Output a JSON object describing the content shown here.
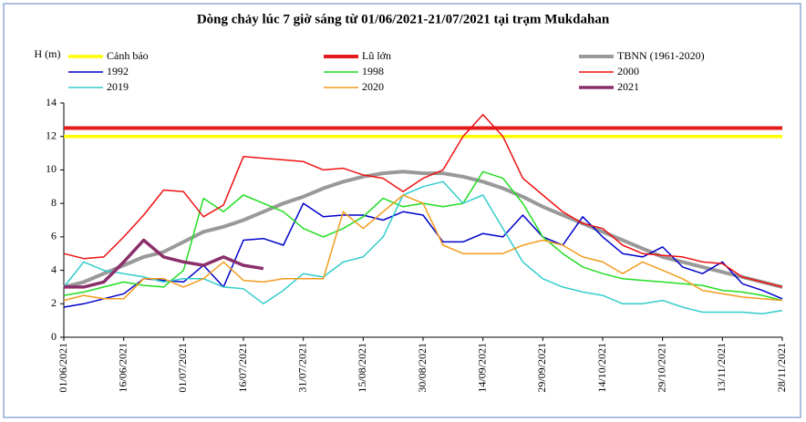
{
  "chart_data": {
    "type": "line",
    "title": "Dòng chảy lúc 7 giờ sáng từ 01/06/2021-21/07/2021 tại trạm Mukdahan",
    "y_label": "H (m)",
    "xlim": [
      "01/06/2021",
      "28/11/2021"
    ],
    "xticks": [
      "01/06/2021",
      "16/06/2021",
      "01/07/2021",
      "16/07/2021",
      "31/07/2021",
      "15/08/2021",
      "30/08/2021",
      "14/09/2021",
      "29/09/2021",
      "14/10/2021",
      "29/10/2021",
      "13/11/2021",
      "28/11/2021"
    ],
    "ylim": [
      0,
      14
    ],
    "yticks": [
      0,
      2,
      4,
      6,
      8,
      10,
      12,
      14
    ],
    "x": [
      "01/06/2021",
      "06/06/2021",
      "11/06/2021",
      "16/06/2021",
      "21/06/2021",
      "26/06/2021",
      "01/07/2021",
      "06/07/2021",
      "11/07/2021",
      "16/07/2021",
      "21/07/2021",
      "26/07/2021",
      "31/07/2021",
      "05/08/2021",
      "10/08/2021",
      "15/08/2021",
      "20/08/2021",
      "25/08/2021",
      "30/08/2021",
      "04/09/2021",
      "09/09/2021",
      "14/09/2021",
      "19/09/2021",
      "24/09/2021",
      "29/09/2021",
      "04/10/2021",
      "09/10/2021",
      "14/10/2021",
      "19/10/2021",
      "24/10/2021",
      "29/10/2021",
      "03/11/2021",
      "08/11/2021",
      "13/11/2021",
      "18/11/2021",
      "23/11/2021",
      "28/11/2021"
    ],
    "series": [
      {
        "name": "Cảnh báo",
        "color": "#ffff00",
        "line_width": 3.5,
        "values": [
          12,
          12,
          12,
          12,
          12,
          12,
          12,
          12,
          12,
          12,
          12,
          12,
          12,
          12,
          12,
          12,
          12,
          12,
          12,
          12,
          12,
          12,
          12,
          12,
          12,
          12,
          12,
          12,
          12,
          12,
          12,
          12,
          12,
          12,
          12,
          12,
          12
        ]
      },
      {
        "name": "Lũ lớn",
        "color": "#e41a1c",
        "line_width": 4,
        "values": [
          12.5,
          12.5,
          12.5,
          12.5,
          12.5,
          12.5,
          12.5,
          12.5,
          12.5,
          12.5,
          12.5,
          12.5,
          12.5,
          12.5,
          12.5,
          12.5,
          12.5,
          12.5,
          12.5,
          12.5,
          12.5,
          12.5,
          12.5,
          12.5,
          12.5,
          12.5,
          12.5,
          12.5,
          12.5,
          12.5,
          12.5,
          12.5,
          12.5,
          12.5,
          12.5,
          12.5,
          12.5
        ]
      },
      {
        "name": "TBNN (1961-2020)",
        "color": "#999999",
        "line_width": 4,
        "values": [
          3.0,
          3.3,
          3.8,
          4.3,
          4.8,
          5.1,
          5.7,
          6.3,
          6.6,
          7.0,
          7.5,
          8.0,
          8.4,
          8.9,
          9.3,
          9.6,
          9.8,
          9.9,
          9.8,
          9.8,
          9.6,
          9.3,
          8.9,
          8.4,
          7.8,
          7.3,
          6.8,
          6.3,
          5.8,
          5.3,
          4.8,
          4.5,
          4.2,
          3.9,
          3.6,
          3.3,
          3.0
        ]
      },
      {
        "name": "1992",
        "color": "#0000cc",
        "line_width": 1.5,
        "values": [
          1.8,
          2.0,
          2.3,
          2.6,
          3.5,
          3.4,
          3.3,
          4.3,
          3.0,
          5.8,
          5.9,
          5.5,
          8.0,
          7.2,
          7.3,
          7.3,
          7.0,
          7.5,
          7.3,
          5.7,
          5.7,
          6.2,
          6.0,
          7.3,
          6.0,
          5.5,
          7.2,
          6.0,
          5.0,
          4.8,
          5.4,
          4.2,
          3.8,
          4.5,
          3.2,
          2.8,
          2.3
        ]
      },
      {
        "name": "1998",
        "color": "#22dd22",
        "line_width": 1.5,
        "values": [
          2.5,
          2.7,
          3.0,
          3.3,
          3.1,
          3.0,
          4.0,
          8.3,
          7.5,
          8.5,
          8.0,
          7.5,
          6.5,
          6.0,
          6.5,
          7.2,
          8.3,
          7.8,
          8.0,
          7.8,
          8.0,
          9.9,
          9.5,
          8.0,
          6.0,
          5.0,
          4.2,
          3.8,
          3.5,
          3.4,
          3.3,
          3.2,
          3.1,
          2.8,
          2.7,
          2.5,
          2.2
        ]
      },
      {
        "name": "2000",
        "color": "#ee1111",
        "line_width": 1.5,
        "values": [
          5.0,
          4.7,
          4.8,
          6.0,
          7.3,
          8.8,
          8.7,
          7.2,
          7.9,
          10.8,
          10.7,
          10.6,
          10.5,
          10.0,
          10.1,
          9.7,
          9.5,
          8.7,
          9.5,
          10.0,
          12.0,
          13.3,
          12.0,
          9.5,
          8.5,
          7.5,
          6.8,
          6.5,
          5.5,
          5.0,
          4.9,
          4.8,
          4.5,
          4.4,
          3.6,
          3.3,
          3.0
        ]
      },
      {
        "name": "2019",
        "color": "#33cccc",
        "line_width": 1.5,
        "values": [
          3.0,
          4.5,
          4.0,
          3.8,
          3.6,
          3.3,
          3.5,
          3.5,
          3.0,
          2.9,
          2.0,
          2.8,
          3.8,
          3.6,
          4.5,
          4.8,
          6.0,
          8.5,
          9.0,
          9.3,
          8.0,
          8.5,
          6.5,
          4.5,
          3.5,
          3.0,
          2.7,
          2.5,
          2.0,
          2.0,
          2.2,
          1.8,
          1.5,
          1.5,
          1.5,
          1.4,
          1.6
        ]
      },
      {
        "name": "2020",
        "color": "#f39c1e",
        "line_width": 1.5,
        "values": [
          2.2,
          2.5,
          2.3,
          2.3,
          3.5,
          3.5,
          3.0,
          3.5,
          4.5,
          3.4,
          3.3,
          3.5,
          3.5,
          3.5,
          7.5,
          6.5,
          7.5,
          8.5,
          8.0,
          5.5,
          5.0,
          5.0,
          5.0,
          5.5,
          5.8,
          5.5,
          4.8,
          4.5,
          3.8,
          4.5,
          4.0,
          3.5,
          2.8,
          2.6,
          2.4,
          2.3,
          2.2
        ]
      },
      {
        "name": "2021",
        "color": "#8b2f6b",
        "line_width": 3.5,
        "values": [
          3.0,
          3.0,
          3.3,
          4.5,
          5.8,
          4.8,
          4.5,
          4.3,
          4.8,
          4.3,
          4.1,
          null,
          null,
          null,
          null,
          null,
          null,
          null,
          null,
          null,
          null,
          null,
          null,
          null,
          null,
          null,
          null,
          null,
          null,
          null,
          null,
          null,
          null,
          null,
          null,
          null,
          null
        ]
      }
    ]
  }
}
